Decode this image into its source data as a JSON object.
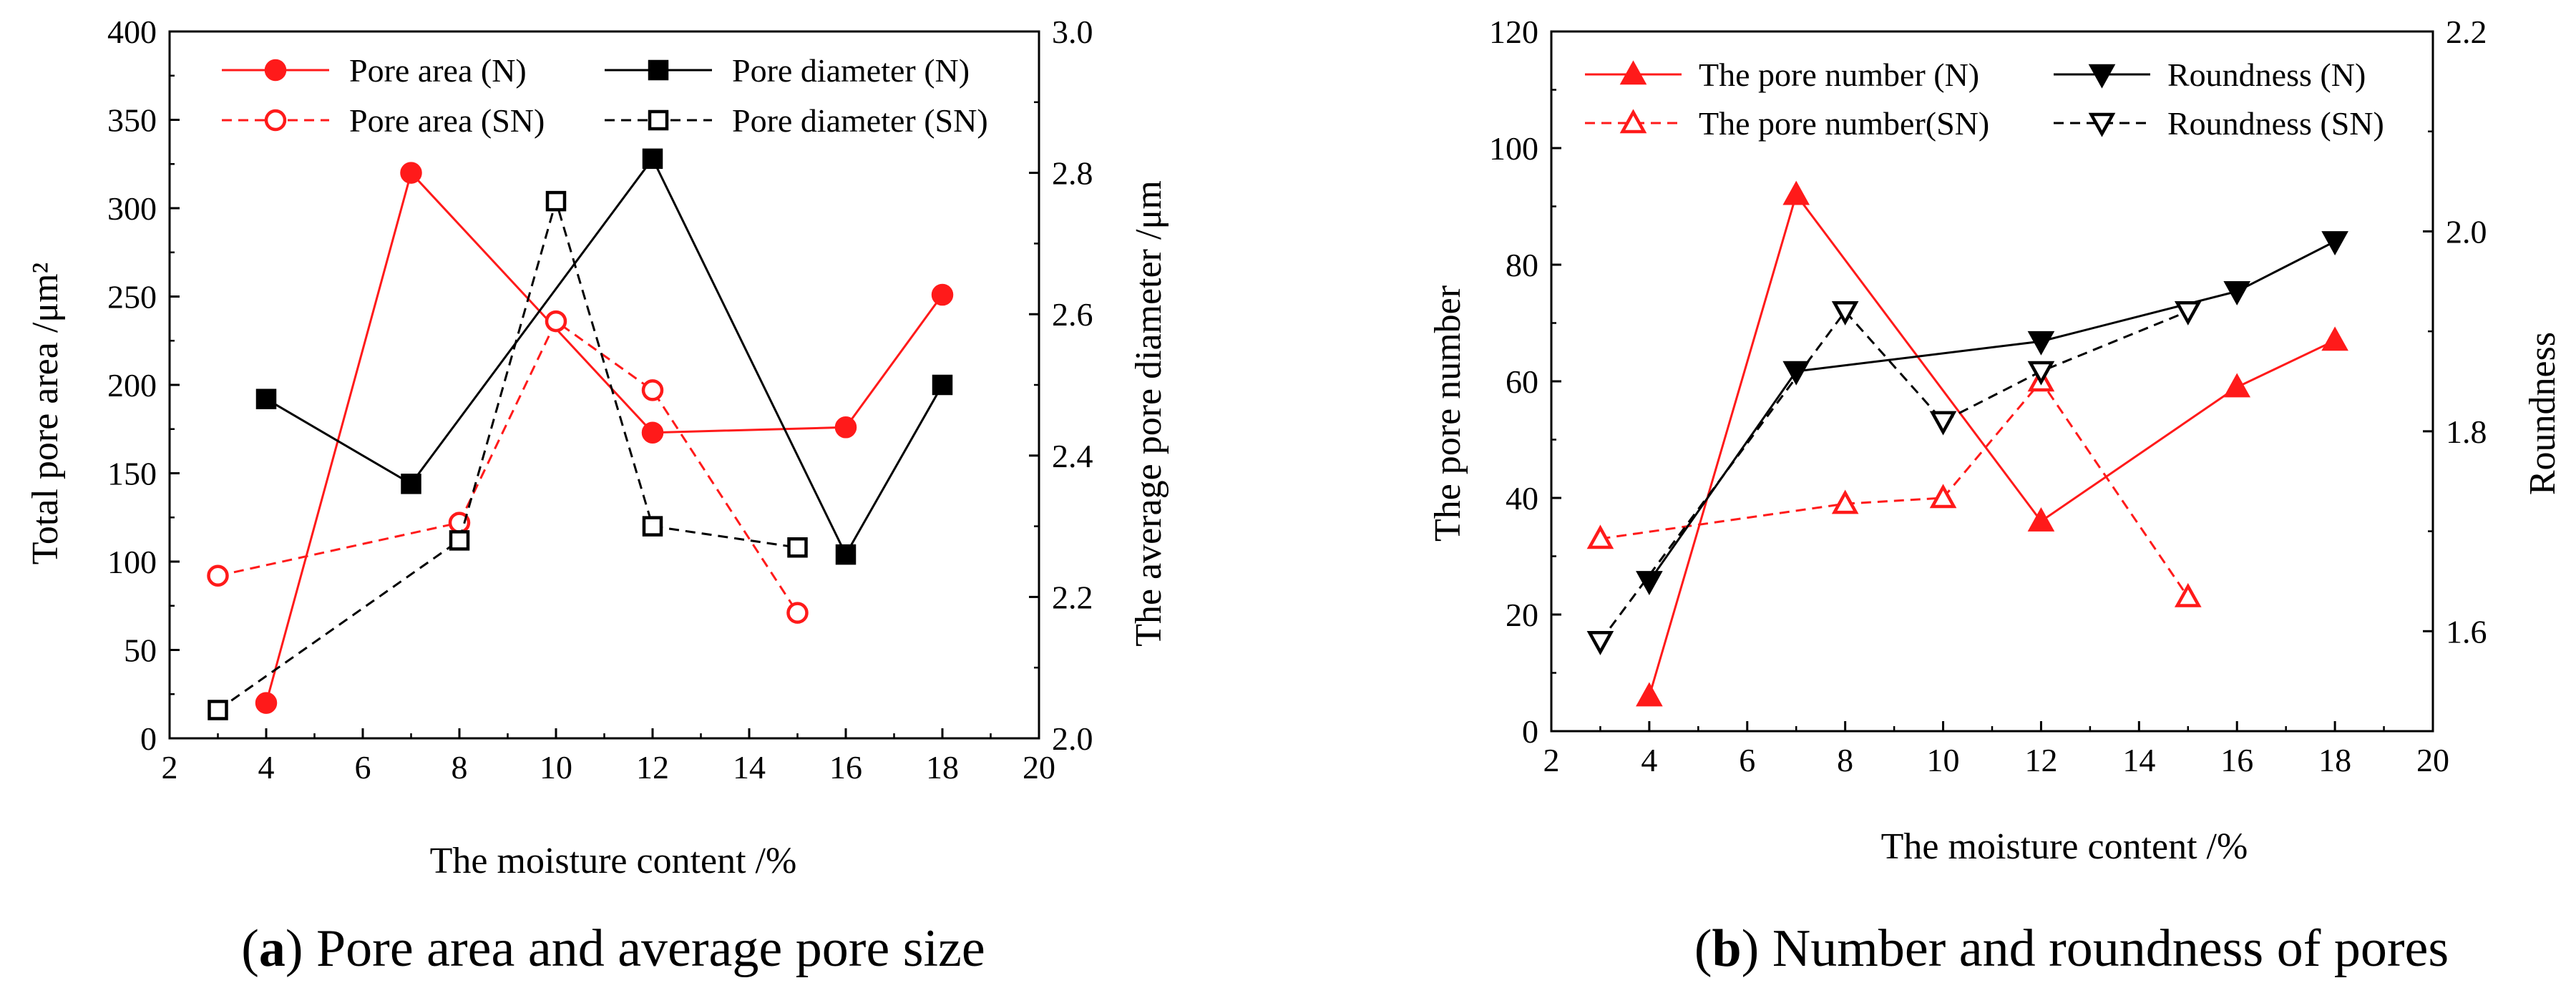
{
  "colors": {
    "red": "#ff1a1a",
    "black": "#000000"
  },
  "panels": {
    "a": {
      "caption_letter": "a",
      "caption_text": " Pore area and average pore size"
    },
    "b": {
      "caption_letter": "b",
      "caption_text": " Number and roundness of pores"
    }
  },
  "chart_data": [
    {
      "type": "line",
      "panel": "a",
      "xlabel": "The moisture content /%",
      "xlim": [
        2,
        20
      ],
      "xticks": [
        2,
        4,
        6,
        8,
        10,
        12,
        14,
        16,
        18,
        20
      ],
      "ylabel_left": "Total pore area  /μm²",
      "ylim_left": [
        0,
        400
      ],
      "yticks_left": [
        0,
        50,
        100,
        150,
        200,
        250,
        300,
        350,
        400
      ],
      "ylabel_right": "The average pore diameter  /μm",
      "ylim_right": [
        2.0,
        3.0
      ],
      "yticks_right": [
        "2.0",
        "2.2",
        "2.4",
        "2.6",
        "2.8",
        "3.0"
      ],
      "series": [
        {
          "name": "Pore area (N)",
          "axis": "left",
          "color": "#ff1a1a",
          "dash": "solid",
          "marker": "circle",
          "fill": "filled",
          "x": [
            4,
            7,
            12,
            16,
            18
          ],
          "values": [
            20,
            320,
            173,
            176,
            251
          ]
        },
        {
          "name": "Pore area (SN)",
          "axis": "left",
          "color": "#ff1a1a",
          "dash": "dashed",
          "marker": "circle",
          "fill": "open",
          "x": [
            3,
            8,
            10,
            12,
            15
          ],
          "values": [
            92,
            122,
            236,
            197,
            71
          ]
        },
        {
          "name": "Pore diameter (N)",
          "axis": "right",
          "color": "#000000",
          "dash": "solid",
          "marker": "square",
          "fill": "filled",
          "x": [
            4,
            7,
            12,
            16,
            18
          ],
          "values": [
            2.48,
            2.36,
            2.82,
            2.26,
            2.5
          ]
        },
        {
          "name": "Pore diameter (SN)",
          "axis": "right",
          "color": "#000000",
          "dash": "dashed",
          "marker": "square",
          "fill": "open",
          "x": [
            3,
            8,
            10,
            12,
            15
          ],
          "values": [
            2.04,
            2.28,
            2.76,
            2.3,
            2.27
          ]
        }
      ]
    },
    {
      "type": "line",
      "panel": "b",
      "xlabel": "The moisture content /%",
      "xlim": [
        2,
        20
      ],
      "xticks": [
        2,
        4,
        6,
        8,
        10,
        12,
        14,
        16,
        18,
        20
      ],
      "ylabel_left": "The pore number",
      "ylim_left": [
        0,
        120
      ],
      "yticks_left": [
        0,
        20,
        40,
        60,
        80,
        100,
        120
      ],
      "ylabel_right": "Roundness",
      "ylim_right": [
        1.5,
        2.2
      ],
      "yticks_right": [
        "1.6",
        "1.8",
        "2.0",
        "2.2"
      ],
      "series": [
        {
          "name": "The pore number (N)",
          "axis": "left",
          "color": "#ff1a1a",
          "dash": "solid",
          "marker": "triangle-up",
          "fill": "filled",
          "x": [
            4,
            7,
            12,
            16,
            18
          ],
          "values": [
            6,
            92,
            36,
            59,
            67
          ]
        },
        {
          "name": "The pore number(SN)",
          "axis": "left",
          "color": "#ff1a1a",
          "dash": "dashed",
          "marker": "triangle-up",
          "fill": "open",
          "x": [
            3,
            8,
            10,
            12,
            15
          ],
          "values": [
            33,
            39,
            40,
            60,
            23
          ]
        },
        {
          "name": "Roundness (N)",
          "axis": "right",
          "color": "#000000",
          "dash": "solid",
          "marker": "triangle-down",
          "fill": "filled",
          "x": [
            4,
            7,
            12,
            16,
            18
          ],
          "values": [
            1.65,
            1.86,
            1.89,
            1.94,
            1.99
          ]
        },
        {
          "name": "Roundness (SN)",
          "axis": "right",
          "color": "#000000",
          "dash": "dashed",
          "marker": "triangle-down",
          "fill": "open",
          "x": [
            3,
            8,
            10,
            12,
            15
          ],
          "values": [
            1.59,
            1.92,
            1.81,
            1.86,
            1.92
          ]
        }
      ]
    }
  ]
}
